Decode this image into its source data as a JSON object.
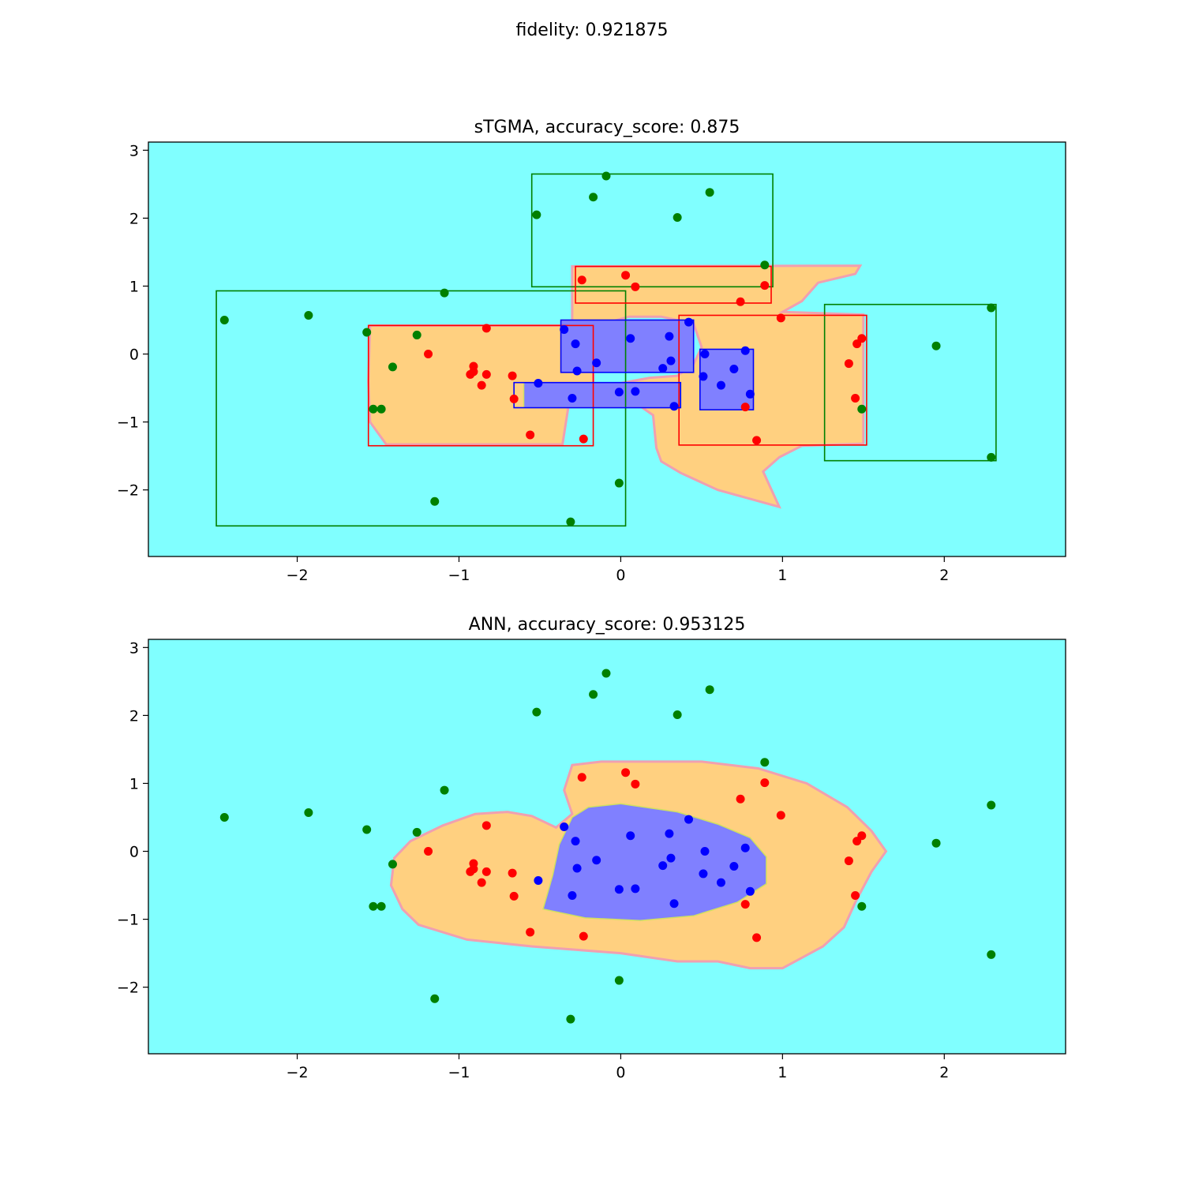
{
  "suptitle": "fidelity: 0.921875",
  "colors": {
    "background_region": "#80ffff",
    "outer_region": "#ffd080",
    "inner_region": "#8080ff",
    "green_class": "#008000",
    "red_class": "#ff0000",
    "blue_class": "#0000ff"
  },
  "points": {
    "green": [
      [
        -2.45,
        0.5
      ],
      [
        -1.93,
        0.57
      ],
      [
        -1.09,
        0.9
      ],
      [
        -1.57,
        0.32
      ],
      [
        -1.26,
        0.28
      ],
      [
        -1.41,
        -0.19
      ],
      [
        -1.53,
        -0.81
      ],
      [
        -1.48,
        -0.81
      ],
      [
        -1.15,
        -2.17
      ],
      [
        -0.52,
        2.05
      ],
      [
        -0.17,
        2.31
      ],
      [
        -0.09,
        2.62
      ],
      [
        0.35,
        2.01
      ],
      [
        0.55,
        2.38
      ],
      [
        0.89,
        1.31
      ],
      [
        -0.01,
        -1.9
      ],
      [
        -0.31,
        -2.47
      ],
      [
        1.95,
        0.12
      ],
      [
        2.29,
        0.68
      ],
      [
        2.29,
        -1.52
      ],
      [
        1.49,
        -0.81
      ]
    ],
    "red": [
      [
        -0.24,
        1.09
      ],
      [
        0.03,
        1.16
      ],
      [
        0.09,
        0.99
      ],
      [
        0.74,
        0.77
      ],
      [
        0.89,
        1.01
      ],
      [
        0.99,
        0.53
      ],
      [
        -0.83,
        0.38
      ],
      [
        -1.19,
        0.0
      ],
      [
        -0.91,
        -0.18
      ],
      [
        -0.93,
        -0.3
      ],
      [
        -0.91,
        -0.26
      ],
      [
        -0.83,
        -0.3
      ],
      [
        -0.86,
        -0.46
      ],
      [
        -0.67,
        -0.32
      ],
      [
        -0.66,
        -0.66
      ],
      [
        -0.56,
        -1.19
      ],
      [
        -0.23,
        -1.25
      ],
      [
        0.77,
        -0.78
      ],
      [
        0.84,
        -1.27
      ],
      [
        1.41,
        -0.14
      ],
      [
        1.46,
        0.15
      ],
      [
        1.49,
        0.23
      ],
      [
        1.45,
        -0.65
      ]
    ],
    "blue": [
      [
        -0.35,
        0.36
      ],
      [
        -0.28,
        0.15
      ],
      [
        -0.27,
        -0.25
      ],
      [
        -0.15,
        -0.13
      ],
      [
        -0.51,
        -0.43
      ],
      [
        -0.3,
        -0.65
      ],
      [
        -0.01,
        -0.56
      ],
      [
        0.09,
        -0.55
      ],
      [
        0.06,
        0.23
      ],
      [
        0.3,
        0.26
      ],
      [
        0.31,
        -0.1
      ],
      [
        0.26,
        -0.21
      ],
      [
        0.42,
        0.47
      ],
      [
        0.33,
        -0.77
      ],
      [
        0.52,
        0.0
      ],
      [
        0.51,
        -0.33
      ],
      [
        0.62,
        -0.46
      ],
      [
        0.7,
        -0.22
      ],
      [
        0.77,
        0.05
      ],
      [
        0.8,
        -0.59
      ]
    ]
  },
  "chart_data": [
    {
      "type": "scatter",
      "title": "sTGMA, accuracy_score: 0.875",
      "xlabel": "",
      "ylabel": "",
      "xlim": [
        -2.92,
        2.75
      ],
      "ylim": [
        -2.98,
        3.12
      ],
      "xticks": [
        -2,
        -1,
        0,
        1,
        2
      ],
      "xtick_labels": [
        "−2",
        "−1",
        "0",
        "1",
        "2"
      ],
      "yticks": [
        -2,
        -1,
        0,
        1,
        2,
        3
      ],
      "ytick_labels": [
        "−2",
        "−1",
        "0",
        "1",
        "2",
        "3"
      ],
      "grid": false,
      "series": [
        {
          "color": "#008000",
          "points_ref": "green"
        },
        {
          "color": "#ff0000",
          "points_ref": "red"
        },
        {
          "color": "#0000ff",
          "points_ref": "blue"
        }
      ],
      "rectangles": [
        {
          "color": "#008000",
          "x0": -0.55,
          "x1": 0.94,
          "y0": 0.99,
          "y1": 2.65
        },
        {
          "color": "#008000",
          "x0": -2.5,
          "x1": 0.03,
          "y0": -2.53,
          "y1": 0.93
        },
        {
          "color": "#008000",
          "x0": 1.26,
          "x1": 2.32,
          "y0": -1.57,
          "y1": 0.73
        },
        {
          "color": "#ff0000",
          "x0": -0.28,
          "x1": 0.93,
          "y0": 0.75,
          "y1": 1.29
        },
        {
          "color": "#ff0000",
          "x0": -1.56,
          "x1": -0.17,
          "y0": -1.35,
          "y1": 0.42
        },
        {
          "color": "#ff0000",
          "x0": 0.36,
          "x1": 1.52,
          "y0": -1.34,
          "y1": 0.57
        },
        {
          "color": "#0000ff",
          "x0": -0.37,
          "x1": 0.45,
          "y0": -0.27,
          "y1": 0.5
        },
        {
          "color": "#0000ff",
          "x0": -0.66,
          "x1": 0.37,
          "y0": -0.79,
          "y1": -0.42
        },
        {
          "color": "#0000ff",
          "x0": 0.49,
          "x1": 0.82,
          "y0": -0.82,
          "y1": 0.07
        }
      ],
      "regions": {
        "outer": [
          [
            [
              -1.55,
              0.42
            ],
            [
              -0.17,
              0.42
            ],
            [
              -0.17,
              -0.72
            ],
            [
              -0.32,
              -0.72
            ],
            [
              -0.36,
              -1.33
            ],
            [
              -1.45,
              -1.33
            ],
            [
              -1.55,
              -1.0
            ],
            [
              -1.56,
              -0.4
            ]
          ],
          [
            [
              -0.3,
              1.29
            ],
            [
              1.48,
              1.3
            ],
            [
              1.45,
              1.18
            ],
            [
              1.22,
              1.05
            ],
            [
              1.12,
              0.78
            ],
            [
              1.0,
              0.62
            ],
            [
              1.5,
              0.58
            ],
            [
              1.5,
              -1.32
            ],
            [
              1.12,
              -1.35
            ],
            [
              0.98,
              -1.52
            ],
            [
              0.88,
              -1.73
            ],
            [
              0.98,
              -2.25
            ],
            [
              0.6,
              -2.0
            ],
            [
              0.37,
              -1.75
            ],
            [
              0.25,
              -1.58
            ],
            [
              0.22,
              -1.38
            ],
            [
              0.2,
              -0.9
            ],
            [
              0.05,
              -0.65
            ],
            [
              -0.05,
              -0.45
            ],
            [
              0.18,
              -0.35
            ],
            [
              0.35,
              -0.32
            ],
            [
              0.45,
              -0.15
            ],
            [
              0.5,
              0.1
            ],
            [
              0.45,
              0.45
            ],
            [
              0.25,
              0.55
            ],
            [
              0.05,
              0.55
            ],
            [
              -0.1,
              0.45
            ],
            [
              -0.3,
              0.45
            ],
            [
              -0.3,
              0.75
            ]
          ]
        ],
        "inner": [
          [
            [
              -0.37,
              0.5
            ],
            [
              0.45,
              0.5
            ],
            [
              0.45,
              -0.27
            ],
            [
              -0.37,
              -0.27
            ]
          ],
          [
            [
              -0.6,
              -0.42
            ],
            [
              0.37,
              -0.42
            ],
            [
              0.37,
              -0.79
            ],
            [
              -0.6,
              -0.79
            ]
          ],
          [
            [
              0.49,
              0.07
            ],
            [
              0.82,
              0.07
            ],
            [
              0.82,
              -0.82
            ],
            [
              0.49,
              -0.82
            ]
          ]
        ]
      }
    },
    {
      "type": "scatter",
      "title": "ANN, accuracy_score: 0.953125",
      "xlabel": "",
      "ylabel": "",
      "xlim": [
        -2.92,
        2.75
      ],
      "ylim": [
        -2.98,
        3.12
      ],
      "xticks": [
        -2,
        -1,
        0,
        1,
        2
      ],
      "xtick_labels": [
        "−2",
        "−1",
        "0",
        "1",
        "2"
      ],
      "yticks": [
        -2,
        -1,
        0,
        1,
        2,
        3
      ],
      "ytick_labels": [
        "−2",
        "−1",
        "0",
        "1",
        "2",
        "3"
      ],
      "grid": false,
      "series": [
        {
          "color": "#008000",
          "points_ref": "green"
        },
        {
          "color": "#ff0000",
          "points_ref": "red"
        },
        {
          "color": "#0000ff",
          "points_ref": "blue"
        }
      ],
      "rectangles": [],
      "regions": {
        "outer": [
          [
            [
              -0.3,
              1.27
            ],
            [
              -0.12,
              1.32
            ],
            [
              0.5,
              1.32
            ],
            [
              0.85,
              1.22
            ],
            [
              1.15,
              1.0
            ],
            [
              1.4,
              0.65
            ],
            [
              1.55,
              0.3
            ],
            [
              1.64,
              0.0
            ],
            [
              1.55,
              -0.3
            ],
            [
              1.45,
              -0.75
            ],
            [
              1.38,
              -1.12
            ],
            [
              1.25,
              -1.4
            ],
            [
              1.0,
              -1.72
            ],
            [
              0.8,
              -1.72
            ],
            [
              0.6,
              -1.62
            ],
            [
              0.35,
              -1.62
            ],
            [
              0.0,
              -1.5
            ],
            [
              -0.55,
              -1.4
            ],
            [
              -0.95,
              -1.3
            ],
            [
              -1.25,
              -1.08
            ],
            [
              -1.35,
              -0.85
            ],
            [
              -1.42,
              -0.5
            ],
            [
              -1.4,
              -0.1
            ],
            [
              -1.3,
              0.15
            ],
            [
              -1.1,
              0.38
            ],
            [
              -0.9,
              0.55
            ],
            [
              -0.7,
              0.58
            ],
            [
              -0.55,
              0.52
            ],
            [
              -0.4,
              0.35
            ],
            [
              -0.3,
              0.55
            ],
            [
              -0.35,
              0.9
            ]
          ]
        ],
        "inner": [
          [
            [
              -0.3,
              0.5
            ],
            [
              -0.2,
              0.65
            ],
            [
              0.0,
              0.7
            ],
            [
              0.35,
              0.58
            ],
            [
              0.6,
              0.4
            ],
            [
              0.8,
              0.2
            ],
            [
              0.9,
              -0.08
            ],
            [
              0.9,
              -0.48
            ],
            [
              0.72,
              -0.75
            ],
            [
              0.45,
              -0.95
            ],
            [
              0.12,
              -1.02
            ],
            [
              -0.22,
              -0.98
            ],
            [
              -0.48,
              -0.85
            ],
            [
              -0.42,
              -0.35
            ],
            [
              -0.38,
              0.1
            ]
          ]
        ]
      }
    }
  ]
}
